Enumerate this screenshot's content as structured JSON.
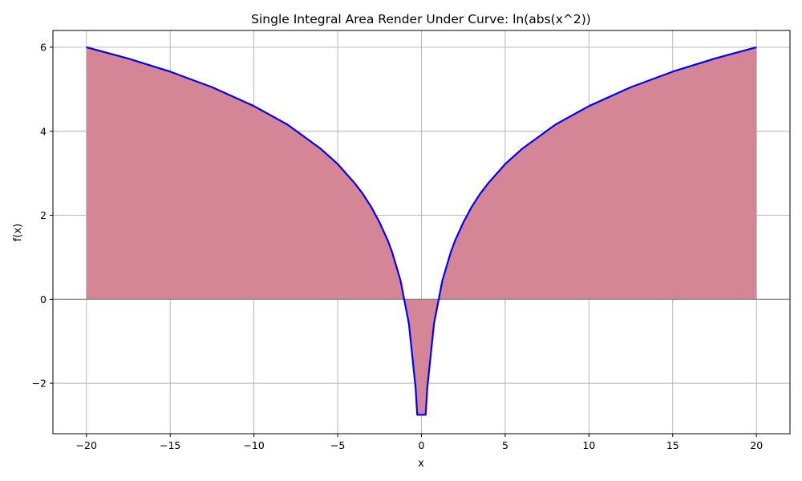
{
  "chart_data": {
    "type": "area",
    "title": "Single Integral Area Render Under Curve: ln(abs(x^2))",
    "xlabel": "x",
    "ylabel": "f(x)",
    "xlim": [
      -22,
      22
    ],
    "ylim": [
      -3.2,
      6.4
    ],
    "xticks": [
      -20,
      -15,
      -10,
      -5,
      0,
      5,
      10,
      15,
      20
    ],
    "xtick_labels": [
      "−20",
      "−15",
      "−10",
      "−5",
      "0",
      "5",
      "10",
      "15",
      "20"
    ],
    "yticks": [
      -2,
      0,
      2,
      4,
      6
    ],
    "ytick_labels": [
      "−2",
      "0",
      "2",
      "4",
      "6"
    ],
    "grid": true,
    "baseline": 0,
    "fill_range": [
      -20,
      20
    ],
    "series": [
      {
        "x": [
          -20.0,
          -17.5,
          -15.0,
          -12.5,
          -10.0,
          -8.0,
          -6.0,
          -5.0,
          -4.0,
          -3.5,
          -3.0,
          -2.5,
          -2.0,
          -1.75,
          -1.25,
          -0.75,
          -0.35,
          -0.25,
          0.25,
          0.35,
          0.75,
          1.25,
          1.75,
          2.0,
          2.5,
          3.0,
          3.5,
          4.0,
          5.0,
          6.0,
          8.0,
          10.0,
          12.5,
          15.0,
          17.5,
          20.0
        ],
        "y": [
          6.0,
          5.73,
          5.42,
          5.05,
          4.6,
          4.16,
          3.58,
          3.22,
          2.77,
          2.51,
          2.2,
          1.83,
          1.39,
          1.12,
          0.45,
          -0.58,
          -2.1,
          -2.75,
          -2.75,
          -2.1,
          -0.58,
          0.45,
          1.12,
          1.39,
          1.83,
          2.2,
          2.51,
          2.77,
          3.22,
          3.58,
          4.16,
          4.6,
          5.05,
          5.42,
          5.73,
          6.0
        ]
      }
    ],
    "colors": {
      "line": "#0000ff",
      "fill": "#d48696",
      "grid": "#b0b0b0",
      "baseline": "#808080"
    }
  }
}
